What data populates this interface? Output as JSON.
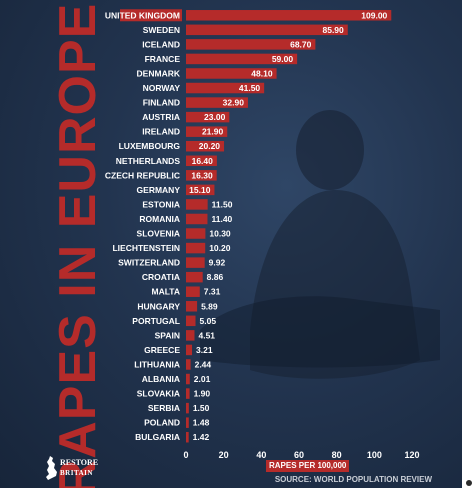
{
  "title": "RAPES IN EUROPE",
  "source": "SOURCE: WORLD POPULATION REVIEW",
  "logo": {
    "line1": "RESTORE",
    "line2": "BRITAIN"
  },
  "colors": {
    "background": "#1f2f47",
    "bar": "#b52b2a",
    "text": "#ffffff"
  },
  "chart_data": {
    "type": "bar",
    "orientation": "horizontal",
    "categories": [
      "UNITED KINGDOM",
      "SWEDEN",
      "ICELAND",
      "FRANCE",
      "DENMARK",
      "NORWAY",
      "FINLAND",
      "AUSTRIA",
      "IRELAND",
      "LUXEMBOURG",
      "NETHERLANDS",
      "CZECH REPUBLIC",
      "GERMANY",
      "ESTONIA",
      "ROMANIA",
      "SLOVENIA",
      "LIECHTENSTEIN",
      "SWITZERLAND",
      "CROATIA",
      "MALTA",
      "HUNGARY",
      "PORTUGAL",
      "SPAIN",
      "GREECE",
      "LITHUANIA",
      "ALBANIA",
      "SLOVAKIA",
      "SERBIA",
      "POLAND",
      "BULGARIA"
    ],
    "values": [
      109.0,
      85.9,
      68.7,
      59.0,
      48.1,
      41.5,
      32.9,
      23.0,
      21.9,
      20.2,
      16.4,
      16.3,
      15.1,
      11.5,
      11.4,
      10.3,
      10.2,
      9.92,
      8.86,
      7.31,
      5.89,
      5.05,
      4.51,
      3.21,
      2.44,
      2.01,
      1.9,
      1.5,
      1.48,
      1.42
    ],
    "value_labels": [
      "109.00",
      "85.90",
      "68.70",
      "59.00",
      "48.10",
      "41.50",
      "32.90",
      "23.00",
      "21.90",
      "20.20",
      "16.40",
      "16.30",
      "15.10",
      "11.50",
      "11.40",
      "10.30",
      "10.20",
      "9.92",
      "8.86",
      "7.31",
      "5.89",
      "5.05",
      "4.51",
      "3.21",
      "2.44",
      "2.01",
      "1.90",
      "1.50",
      "1.48",
      "1.42"
    ],
    "xlabel": "RAPES PER 100,000",
    "xlim": [
      0,
      120
    ],
    "xticks": [
      "0",
      "20",
      "40",
      "60",
      "80",
      "100",
      "120"
    ],
    "grid": false,
    "highlight_first_label": true
  }
}
